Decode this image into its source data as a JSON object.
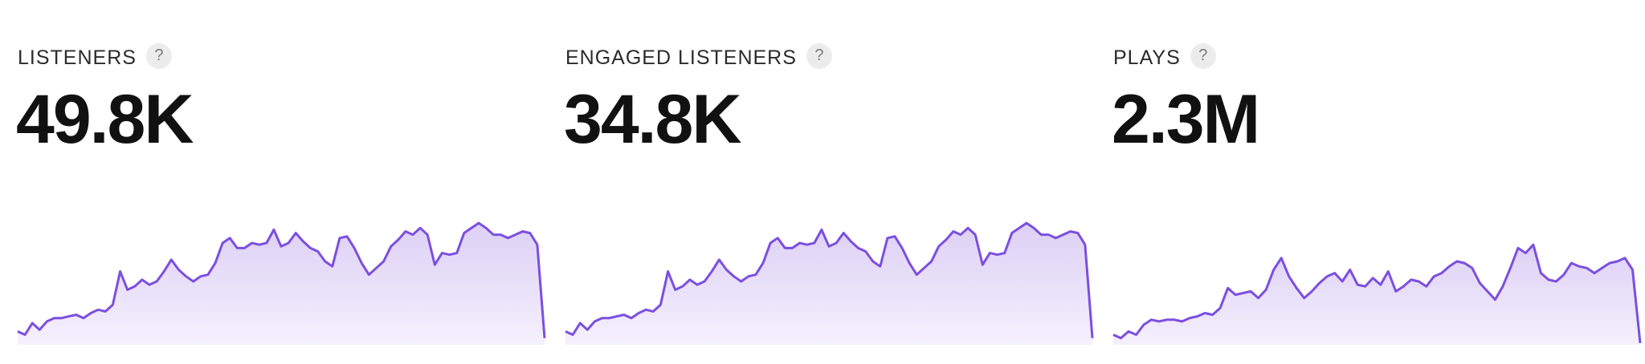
{
  "colors": {
    "line": "#7b4fe0",
    "fill_top": "#ddd0f5",
    "fill_bottom": "#f5f0fd"
  },
  "stats": [
    {
      "label": "LISTENERS",
      "help_icon": "question-mark-icon",
      "help_text": "?",
      "value": "49.8K",
      "chart_data": {
        "type": "area",
        "values": [
          8,
          6,
          13,
          9,
          14,
          16,
          16,
          17,
          18,
          16,
          19,
          21,
          20,
          24,
          44,
          33,
          35,
          39,
          36,
          38,
          44,
          51,
          45,
          41,
          38,
          41,
          42,
          49,
          61,
          64,
          58,
          58,
          61,
          60,
          61,
          69,
          59,
          61,
          67,
          62,
          58,
          56,
          50,
          47,
          64,
          65,
          58,
          49,
          42,
          46,
          50,
          59,
          63,
          68,
          66,
          70,
          66,
          48,
          55,
          54,
          55,
          67,
          70,
          73,
          70,
          66,
          66,
          64,
          66,
          68,
          67,
          60,
          4
        ]
      }
    },
    {
      "label": "ENGAGED LISTENERS",
      "help_icon": "question-mark-icon",
      "help_text": "?",
      "value": "34.8K",
      "chart_data": {
        "type": "area",
        "values": [
          8,
          6,
          13,
          9,
          14,
          16,
          16,
          17,
          18,
          16,
          19,
          21,
          20,
          24,
          44,
          33,
          35,
          39,
          36,
          38,
          44,
          51,
          45,
          41,
          38,
          41,
          42,
          49,
          61,
          64,
          58,
          58,
          61,
          60,
          61,
          69,
          59,
          61,
          67,
          62,
          58,
          56,
          50,
          47,
          64,
          65,
          58,
          49,
          42,
          46,
          50,
          59,
          63,
          68,
          66,
          70,
          66,
          48,
          55,
          54,
          55,
          67,
          70,
          73,
          70,
          66,
          66,
          64,
          66,
          68,
          67,
          60,
          4
        ]
      }
    },
    {
      "label": "PLAYS",
      "help_icon": "question-mark-icon",
      "help_text": "?",
      "value": "2.3M",
      "chart_data": {
        "type": "area",
        "values": [
          6,
          4,
          8,
          6,
          12,
          15,
          14,
          15,
          15,
          14,
          16,
          17,
          19,
          18,
          22,
          34,
          30,
          31,
          32,
          28,
          33,
          45,
          52,
          41,
          34,
          28,
          32,
          37,
          41,
          43,
          38,
          45,
          36,
          35,
          40,
          36,
          44,
          32,
          35,
          39,
          38,
          35,
          41,
          43,
          47,
          50,
          49,
          46,
          37,
          32,
          27,
          35,
          46,
          58,
          55,
          60,
          43,
          39,
          38,
          42,
          49,
          47,
          46,
          43,
          46,
          49,
          50,
          52,
          45,
          1
        ]
      }
    }
  ]
}
